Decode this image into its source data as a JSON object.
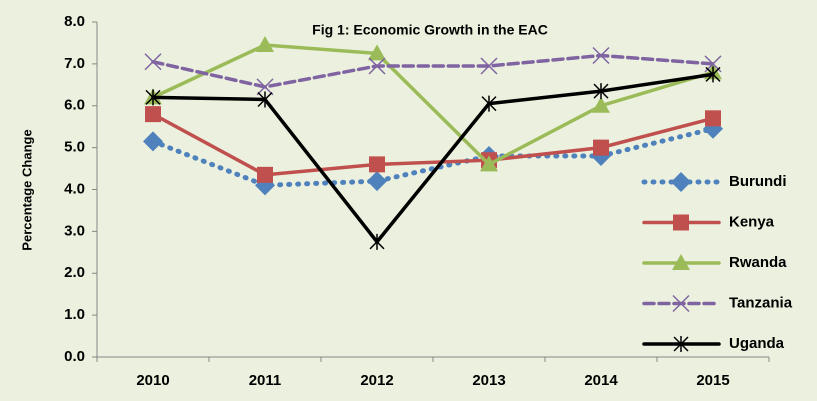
{
  "chart_data": {
    "type": "line",
    "title": "Fig 1: Economic Growth in the EAC",
    "y_label": "Percentage Change",
    "categories": [
      "2010",
      "2011",
      "2012",
      "2013",
      "2014",
      "2015"
    ],
    "ylim": [
      0,
      8
    ],
    "yticks": [
      {
        "value": 0,
        "label": "0.0"
      },
      {
        "value": 1,
        "label": "1.0"
      },
      {
        "value": 2,
        "label": "2.0"
      },
      {
        "value": 3,
        "label": "3.0"
      },
      {
        "value": 4,
        "label": "4.0"
      },
      {
        "value": 5,
        "label": "5.0"
      },
      {
        "value": 6,
        "label": "6.0"
      },
      {
        "value": 7,
        "label": "7.0"
      },
      {
        "value": 8,
        "label": "8.0"
      }
    ],
    "grid": false,
    "legend": "right",
    "series": [
      {
        "name": "Burundi",
        "color": "#4f81bd",
        "dash": "dotted",
        "marker": "diamond",
        "values": [
          5.15,
          4.1,
          4.2,
          4.8,
          4.8,
          5.45
        ]
      },
      {
        "name": "Kenya",
        "color": "#c0504d",
        "dash": "solid",
        "marker": "square",
        "values": [
          5.8,
          4.35,
          4.6,
          4.7,
          5.0,
          5.7
        ]
      },
      {
        "name": "Rwanda",
        "color": "#9bbb59",
        "dash": "solid",
        "marker": "triangle",
        "values": [
          6.2,
          7.45,
          7.25,
          4.6,
          6.0,
          6.8
        ]
      },
      {
        "name": "Tanzania",
        "color": "#8064a2",
        "dash": "dashed",
        "marker": "x",
        "values": [
          7.05,
          6.45,
          6.95,
          6.95,
          7.2,
          7.0
        ]
      },
      {
        "name": "Uganda",
        "color": "#000000",
        "dash": "solid",
        "marker": "star",
        "values": [
          6.2,
          6.15,
          2.75,
          6.05,
          6.35,
          6.75
        ]
      }
    ]
  }
}
